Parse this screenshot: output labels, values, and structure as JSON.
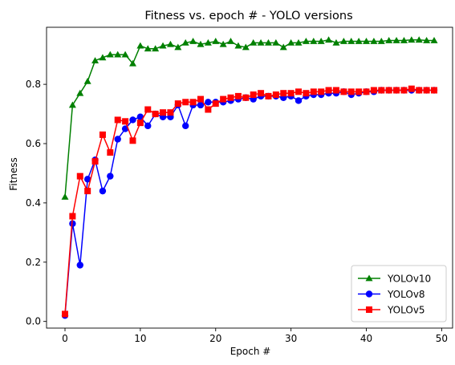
{
  "chart_data": {
    "type": "line",
    "title": "Fitness vs. epoch # - YOLO versions",
    "xlabel": "Epoch #",
    "ylabel": "Fitness",
    "xlim": [
      -2.45,
      51.45
    ],
    "ylim": [
      -0.0225,
      0.9925
    ],
    "xticks": [
      0,
      10,
      20,
      30,
      40,
      50
    ],
    "yticks": [
      0.0,
      0.2,
      0.4,
      0.6,
      0.8
    ],
    "xtick_labels": [
      "0",
      "10",
      "20",
      "30",
      "40",
      "50"
    ],
    "ytick_labels": [
      "0.0",
      "0.2",
      "0.4",
      "0.6",
      "0.8"
    ],
    "grid": false,
    "legend_position": "lower-right",
    "x": [
      0,
      1,
      2,
      3,
      4,
      5,
      6,
      7,
      8,
      9,
      10,
      11,
      12,
      13,
      14,
      15,
      16,
      17,
      18,
      19,
      20,
      21,
      22,
      23,
      24,
      25,
      26,
      27,
      28,
      29,
      30,
      31,
      32,
      33,
      34,
      35,
      36,
      37,
      38,
      39,
      40,
      41,
      42,
      43,
      44,
      45,
      46,
      47,
      48,
      49
    ],
    "series": [
      {
        "name": "YOLOv10",
        "color": "#008000",
        "marker": "triangle",
        "values": [
          0.42,
          0.73,
          0.77,
          0.81,
          0.88,
          0.89,
          0.9,
          0.9,
          0.9,
          0.87,
          0.93,
          0.92,
          0.92,
          0.93,
          0.935,
          0.925,
          0.94,
          0.945,
          0.935,
          0.94,
          0.945,
          0.935,
          0.945,
          0.93,
          0.925,
          0.94,
          0.94,
          0.94,
          0.94,
          0.925,
          0.94,
          0.94,
          0.945,
          0.945,
          0.945,
          0.95,
          0.94,
          0.945,
          0.945,
          0.945,
          0.945,
          0.945,
          0.945,
          0.948,
          0.948,
          0.948,
          0.95,
          0.95,
          0.948,
          0.948
        ]
      },
      {
        "name": "YOLOv8",
        "color": "#0000ff",
        "marker": "circle",
        "values": [
          0.02,
          0.33,
          0.19,
          0.48,
          0.545,
          0.44,
          0.49,
          0.615,
          0.65,
          0.68,
          0.69,
          0.66,
          0.7,
          0.69,
          0.69,
          0.73,
          0.66,
          0.73,
          0.73,
          0.74,
          0.74,
          0.74,
          0.745,
          0.75,
          0.755,
          0.75,
          0.76,
          0.76,
          0.76,
          0.755,
          0.76,
          0.745,
          0.76,
          0.765,
          0.765,
          0.77,
          0.77,
          0.775,
          0.765,
          0.77,
          0.775,
          0.775,
          0.78,
          0.78,
          0.78,
          0.78,
          0.78,
          0.78,
          0.78,
          0.78
        ]
      },
      {
        "name": "YOLOv5",
        "color": "#ff0000",
        "marker": "square",
        "values": [
          0.025,
          0.355,
          0.49,
          0.44,
          0.54,
          0.63,
          0.57,
          0.68,
          0.675,
          0.61,
          0.67,
          0.715,
          0.7,
          0.705,
          0.705,
          0.735,
          0.74,
          0.74,
          0.75,
          0.715,
          0.735,
          0.75,
          0.755,
          0.76,
          0.755,
          0.765,
          0.77,
          0.76,
          0.765,
          0.77,
          0.77,
          0.775,
          0.77,
          0.775,
          0.775,
          0.78,
          0.78,
          0.775,
          0.775,
          0.775,
          0.775,
          0.78,
          0.78,
          0.78,
          0.78,
          0.78,
          0.785,
          0.78,
          0.78,
          0.78
        ]
      }
    ]
  }
}
